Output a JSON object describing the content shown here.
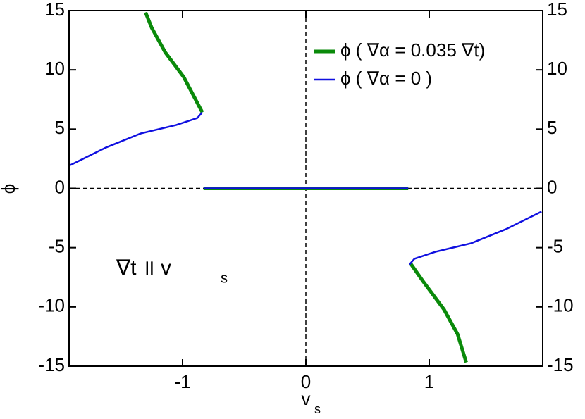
{
  "chart_data": {
    "type": "line",
    "x_label": "v",
    "x_label_sub": "s",
    "y_label": "ϕ",
    "annotation": "∇t  ॥  v",
    "annotation_sub": "s",
    "xlim": [
      -1.92,
      1.92
    ],
    "xticks": [
      -1,
      0,
      1
    ],
    "ylim": [
      -15,
      15
    ],
    "yticks": [
      -15,
      -10,
      -5,
      0,
      5,
      10,
      15
    ],
    "y2lim": [
      -15,
      15
    ],
    "y2ticks": [
      -15,
      -10,
      -5,
      0,
      5,
      10,
      15
    ],
    "zero_lines": true,
    "legend": "upper right",
    "series": [
      {
        "name": "ϕ ( ∇α = 0.035 ∇t)",
        "color": "#0a8a0a",
        "width": 5,
        "x": [
          -1.3,
          -1.25,
          -1.14,
          -0.99,
          -0.84,
          null,
          -0.83,
          0.83,
          null,
          0.85,
          0.95,
          1.12,
          1.23,
          1.3
        ],
        "values": [
          14.85,
          13.55,
          11.47,
          9.39,
          6.42,
          null,
          0,
          0,
          null,
          -6.36,
          -7.84,
          -10.22,
          -12.3,
          -14.68
        ]
      },
      {
        "name": "ϕ ( ∇α = 0 )",
        "color": "#1010e0",
        "width": 2.5,
        "x": [
          -1.91,
          -1.62,
          -1.34,
          -1.05,
          -0.88,
          -0.84,
          null,
          -0.83,
          0.83,
          null,
          0.84,
          0.88,
          1.05,
          1.34,
          1.62,
          1.91
        ],
        "values": [
          1.96,
          3.45,
          4.63,
          5.35,
          5.94,
          6.42,
          null,
          0,
          0,
          null,
          -6.42,
          -5.94,
          -5.35,
          -4.63,
          -3.45,
          -1.96
        ]
      }
    ]
  }
}
